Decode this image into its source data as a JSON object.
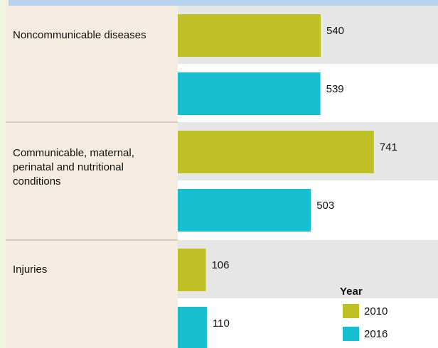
{
  "chart_data": {
    "type": "bar",
    "orientation": "horizontal",
    "categories": [
      "Noncommunicable diseases",
      "Communicable, maternal, perinatal and nutritional conditions",
      "Injuries"
    ],
    "legend_title": "Year",
    "series": [
      {
        "name": "2010",
        "color": "#bfbf26",
        "values": [
          540,
          741,
          106
        ]
      },
      {
        "name": "2016",
        "color": "#17becf",
        "values": [
          539,
          503,
          110
        ]
      }
    ]
  }
}
